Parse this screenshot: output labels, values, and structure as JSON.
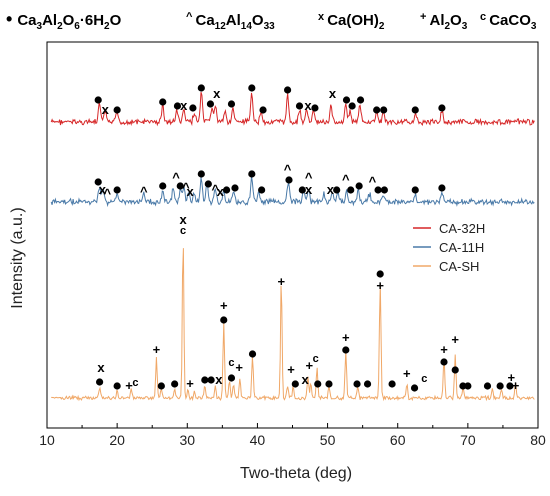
{
  "chart_data": {
    "type": "line",
    "xlabel": "Two-theta (deg)",
    "ylabel": "Intensity (a.u.)",
    "xlim": [
      10,
      80
    ],
    "x_ticks": [
      "10",
      "20",
      "30",
      "40",
      "50",
      "60",
      "70",
      "80"
    ],
    "legend_position": "right-center",
    "phase_legend": [
      {
        "symbol": "•",
        "parts": [
          [
            "Ca",
            ""
          ],
          [
            "3",
            "sub"
          ],
          [
            "Al",
            ""
          ],
          [
            "2",
            "sub"
          ],
          [
            "O",
            ""
          ],
          [
            "6",
            "sub"
          ],
          [
            "·6H",
            ""
          ],
          [
            "2",
            "sub"
          ],
          [
            "O",
            ""
          ]
        ]
      },
      {
        "symbol": "^",
        "parts": [
          [
            "Ca",
            ""
          ],
          [
            "12",
            "sub"
          ],
          [
            "Al",
            ""
          ],
          [
            "14",
            "sub"
          ],
          [
            "O",
            ""
          ],
          [
            "33",
            "sub"
          ]
        ]
      },
      {
        "symbol": "x",
        "parts": [
          [
            "Ca(OH)",
            ""
          ],
          [
            "2",
            "sub"
          ]
        ]
      },
      {
        "symbol": "+",
        "parts": [
          [
            "Al",
            ""
          ],
          [
            "2",
            "sub"
          ],
          [
            "O",
            ""
          ],
          [
            "3",
            "sub"
          ]
        ]
      },
      {
        "symbol": "c",
        "parts": [
          [
            "CaCO",
            ""
          ],
          [
            "3",
            "sub"
          ]
        ]
      }
    ],
    "series": [
      {
        "name": "CA-32H",
        "color": "#d62728",
        "peaks": [
          [
            17.5,
            18
          ],
          [
            18.3,
            10
          ],
          [
            20.0,
            10
          ],
          [
            26.5,
            16
          ],
          [
            28.5,
            12
          ],
          [
            29.5,
            12
          ],
          [
            31.0,
            10
          ],
          [
            32.0,
            28
          ],
          [
            33.5,
            14
          ],
          [
            34.0,
            16
          ],
          [
            35.4,
            10
          ],
          [
            36.5,
            14
          ],
          [
            39.2,
            28
          ],
          [
            40.5,
            10
          ],
          [
            44.3,
            26
          ],
          [
            46.0,
            12
          ],
          [
            47.0,
            12
          ],
          [
            48.0,
            10
          ],
          [
            50.5,
            16
          ],
          [
            52.6,
            18
          ],
          [
            53.2,
            10
          ],
          [
            54.6,
            16
          ],
          [
            57.0,
            10
          ],
          [
            58.0,
            10
          ],
          [
            62.5,
            8
          ],
          [
            66.3,
            12
          ]
        ],
        "markers": [
          {
            "sym": "•",
            "x": 17.3,
            "dy": 22
          },
          {
            "sym": "x",
            "x": 18.3,
            "dy": 12
          },
          {
            "sym": "•",
            "x": 20.0,
            "dy": 12
          },
          {
            "sym": "•",
            "x": 26.5,
            "dy": 20
          },
          {
            "sym": "•",
            "x": 28.6,
            "dy": 16
          },
          {
            "sym": "x",
            "x": 29.5,
            "dy": 16
          },
          {
            "sym": "•",
            "x": 30.8,
            "dy": 14
          },
          {
            "sym": "•",
            "x": 32.0,
            "dy": 34
          },
          {
            "sym": "•",
            "x": 33.3,
            "dy": 18
          },
          {
            "sym": "x",
            "x": 34.2,
            "dy": 28
          },
          {
            "sym": "•",
            "x": 36.3,
            "dy": 18
          },
          {
            "sym": "•",
            "x": 39.2,
            "dy": 34
          },
          {
            "sym": "•",
            "x": 40.8,
            "dy": 12
          },
          {
            "sym": "•",
            "x": 44.3,
            "dy": 32
          },
          {
            "sym": "•",
            "x": 46.0,
            "dy": 16
          },
          {
            "sym": "x",
            "x": 47.2,
            "dy": 16
          },
          {
            "sym": "•",
            "x": 48.2,
            "dy": 14
          },
          {
            "sym": "x",
            "x": 50.7,
            "dy": 28
          },
          {
            "sym": "•",
            "x": 52.7,
            "dy": 22
          },
          {
            "sym": "•",
            "x": 53.5,
            "dy": 16
          },
          {
            "sym": "•",
            "x": 54.7,
            "dy": 22
          },
          {
            "sym": "•",
            "x": 57.0,
            "dy": 12
          },
          {
            "sym": "•",
            "x": 58.0,
            "dy": 12
          },
          {
            "sym": "•",
            "x": 62.5,
            "dy": 12
          },
          {
            "sym": "•",
            "x": 66.3,
            "dy": 14
          }
        ]
      },
      {
        "name": "CA-11H",
        "color": "#4a7aa8",
        "peaks": [
          [
            17.5,
            16
          ],
          [
            18.0,
            12
          ],
          [
            20.0,
            10
          ],
          [
            23.8,
            8
          ],
          [
            26.5,
            12
          ],
          [
            28.0,
            14
          ],
          [
            29.0,
            12
          ],
          [
            29.5,
            14
          ],
          [
            30.2,
            10
          ],
          [
            31.0,
            8
          ],
          [
            32.0,
            24
          ],
          [
            32.8,
            18
          ],
          [
            34.0,
            12
          ],
          [
            35.2,
            10
          ],
          [
            36.6,
            10
          ],
          [
            39.2,
            24
          ],
          [
            40.2,
            10
          ],
          [
            44.4,
            20
          ],
          [
            46.6,
            10
          ],
          [
            47.3,
            12
          ],
          [
            49.5,
            8
          ],
          [
            50.7,
            10
          ],
          [
            51.5,
            10
          ],
          [
            52.7,
            12
          ],
          [
            54.4,
            12
          ],
          [
            56.0,
            8
          ],
          [
            58.0,
            8
          ],
          [
            62.5,
            8
          ],
          [
            66.3,
            10
          ]
        ],
        "markers": [
          {
            "sym": "•",
            "x": 17.3,
            "dy": 20
          },
          {
            "sym": "x",
            "x": 17.9,
            "dy": 12
          },
          {
            "sym": "^",
            "x": 18.6,
            "dy": 8
          },
          {
            "sym": "•",
            "x": 20.0,
            "dy": 12
          },
          {
            "sym": "^",
            "x": 23.8,
            "dy": 10
          },
          {
            "sym": "•",
            "x": 26.5,
            "dy": 16
          },
          {
            "sym": "^",
            "x": 28.4,
            "dy": 24
          },
          {
            "sym": "•",
            "x": 29.0,
            "dy": 16
          },
          {
            "sym": "^",
            "x": 29.8,
            "dy": 14
          },
          {
            "sym": "x",
            "x": 30.4,
            "dy": 10
          },
          {
            "sym": "•",
            "x": 32.0,
            "dy": 28
          },
          {
            "sym": "•",
            "x": 33.0,
            "dy": 18
          },
          {
            "sym": "^",
            "x": 34.0,
            "dy": 12
          },
          {
            "sym": "x",
            "x": 34.7,
            "dy": 10
          },
          {
            "sym": "•",
            "x": 35.6,
            "dy": 12
          },
          {
            "sym": "•",
            "x": 36.8,
            "dy": 14
          },
          {
            "sym": "•",
            "x": 39.2,
            "dy": 28
          },
          {
            "sym": "•",
            "x": 40.6,
            "dy": 12
          },
          {
            "sym": "^",
            "x": 44.3,
            "dy": 32
          },
          {
            "sym": "•",
            "x": 44.5,
            "dy": 22
          },
          {
            "sym": "•",
            "x": 46.4,
            "dy": 12
          },
          {
            "sym": "^",
            "x": 47.3,
            "dy": 24
          },
          {
            "sym": "x",
            "x": 47.3,
            "dy": 12
          },
          {
            "sym": "x",
            "x": 50.4,
            "dy": 12
          },
          {
            "sym": "•",
            "x": 51.3,
            "dy": 12
          },
          {
            "sym": "^",
            "x": 52.6,
            "dy": 22
          },
          {
            "sym": "•",
            "x": 53.3,
            "dy": 12
          },
          {
            "sym": "•",
            "x": 54.5,
            "dy": 16
          },
          {
            "sym": "^",
            "x": 56.4,
            "dy": 20
          },
          {
            "sym": "•",
            "x": 57.2,
            "dy": 12
          },
          {
            "sym": "•",
            "x": 58.1,
            "dy": 12
          },
          {
            "sym": "•",
            "x": 62.5,
            "dy": 12
          },
          {
            "sym": "•",
            "x": 66.3,
            "dy": 14
          }
        ]
      },
      {
        "name": "CA-SH",
        "color": "#f0a868",
        "peaks": [
          [
            17.5,
            10
          ],
          [
            20.0,
            8
          ],
          [
            22.0,
            8
          ],
          [
            25.6,
            40
          ],
          [
            26.3,
            10
          ],
          [
            28.2,
            10
          ],
          [
            29.4,
            160
          ],
          [
            30.1,
            10
          ],
          [
            31.0,
            8
          ],
          [
            32.5,
            12
          ],
          [
            34.0,
            12
          ],
          [
            35.2,
            75
          ],
          [
            36.0,
            18
          ],
          [
            36.6,
            14
          ],
          [
            37.5,
            20
          ],
          [
            39.3,
            42
          ],
          [
            43.4,
            118
          ],
          [
            44.3,
            12
          ],
          [
            45.1,
            12
          ],
          [
            47.2,
            22
          ],
          [
            47.6,
            14
          ],
          [
            48.5,
            30
          ],
          [
            50.2,
            12
          ],
          [
            52.6,
            48
          ],
          [
            54.3,
            12
          ],
          [
            57.5,
            118
          ],
          [
            61.3,
            14
          ],
          [
            66.6,
            40
          ],
          [
            68.2,
            44
          ],
          [
            69.3,
            10
          ],
          [
            73.5,
            10
          ],
          [
            74.8,
            10
          ],
          [
            76.8,
            14
          ]
        ],
        "markers": [
          {
            "sym": "x",
            "x": 17.7,
            "dy": 30
          },
          {
            "sym": "•",
            "x": 17.5,
            "dy": 16
          },
          {
            "sym": "•",
            "x": 20.0,
            "dy": 12
          },
          {
            "sym": "+",
            "x": 21.7,
            "dy": 12
          },
          {
            "sym": "c",
            "x": 22.6,
            "dy": 16
          },
          {
            "sym": "+",
            "x": 25.6,
            "dy": 48
          },
          {
            "sym": "•",
            "x": 26.3,
            "dy": 12
          },
          {
            "sym": "•",
            "x": 28.2,
            "dy": 14
          },
          {
            "sym": "x",
            "x": 29.4,
            "dy": 178
          },
          {
            "sym": "c",
            "x": 29.4,
            "dy": 168
          },
          {
            "sym": "+",
            "x": 30.4,
            "dy": 14
          },
          {
            "sym": "•",
            "x": 32.5,
            "dy": 18
          },
          {
            "sym": "•",
            "x": 33.4,
            "dy": 18
          },
          {
            "sym": "x",
            "x": 34.5,
            "dy": 18
          },
          {
            "sym": "+",
            "x": 35.2,
            "dy": 92
          },
          {
            "sym": "•",
            "x": 35.2,
            "dy": 78
          },
          {
            "sym": "c",
            "x": 36.3,
            "dy": 36
          },
          {
            "sym": "•",
            "x": 36.3,
            "dy": 20
          },
          {
            "sym": "+",
            "x": 37.4,
            "dy": 30
          },
          {
            "sym": "•",
            "x": 39.3,
            "dy": 44
          },
          {
            "sym": "+",
            "x": 43.4,
            "dy": 116
          },
          {
            "sym": "+",
            "x": 44.8,
            "dy": 28
          },
          {
            "sym": "•",
            "x": 45.4,
            "dy": 14
          },
          {
            "sym": "x",
            "x": 46.8,
            "dy": 18
          },
          {
            "sym": "+",
            "x": 47.4,
            "dy": 32
          },
          {
            "sym": "c",
            "x": 48.3,
            "dy": 40
          },
          {
            "sym": "•",
            "x": 48.6,
            "dy": 14
          },
          {
            "sym": "•",
            "x": 50.2,
            "dy": 14
          },
          {
            "sym": "+",
            "x": 52.6,
            "dy": 60
          },
          {
            "sym": "•",
            "x": 52.6,
            "dy": 48
          },
          {
            "sym": "•",
            "x": 54.2,
            "dy": 14
          },
          {
            "sym": "•",
            "x": 55.7,
            "dy": 14
          },
          {
            "sym": "•",
            "x": 57.5,
            "dy": 124
          },
          {
            "sym": "+",
            "x": 57.5,
            "dy": 112
          },
          {
            "sym": "•",
            "x": 59.2,
            "dy": 14
          },
          {
            "sym": "+",
            "x": 61.3,
            "dy": 24
          },
          {
            "sym": "•",
            "x": 62.4,
            "dy": 10
          },
          {
            "sym": "c",
            "x": 63.8,
            "dy": 20
          },
          {
            "sym": "+",
            "x": 66.6,
            "dy": 48
          },
          {
            "sym": "•",
            "x": 66.6,
            "dy": 36
          },
          {
            "sym": "+",
            "x": 68.2,
            "dy": 58
          },
          {
            "sym": "•",
            "x": 68.2,
            "dy": 28
          },
          {
            "sym": "•",
            "x": 69.3,
            "dy": 12
          },
          {
            "sym": "•",
            "x": 70.0,
            "dy": 12
          },
          {
            "sym": "•",
            "x": 72.8,
            "dy": 12
          },
          {
            "sym": "•",
            "x": 74.6,
            "dy": 12
          },
          {
            "sym": "+",
            "x": 76.2,
            "dy": 20
          },
          {
            "sym": "•",
            "x": 76.0,
            "dy": 12
          },
          {
            "sym": "+",
            "x": 76.8,
            "dy": 12
          }
        ]
      }
    ]
  }
}
